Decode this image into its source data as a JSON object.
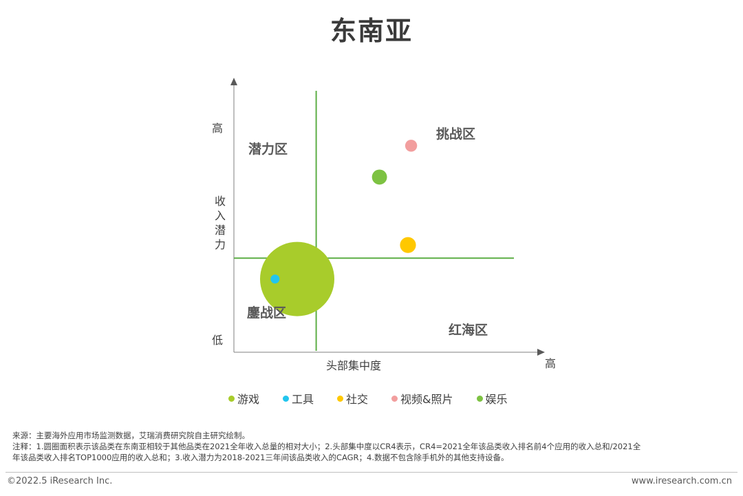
{
  "title": "东南亚",
  "chart_data": {
    "type": "scatter",
    "xlabel": "头部集中度",
    "ylabel": "收入潜力",
    "x_high_label": "高",
    "y_high_label": "高",
    "y_low_label": "低",
    "xlim": [
      0,
      100
    ],
    "ylim": [
      0,
      100
    ],
    "divider": {
      "x": 26,
      "y": 36
    },
    "quadrants": {
      "top_left": "潜力区",
      "top_right": "挑战区",
      "bottom_left": "鏖战区",
      "bottom_right": "红海区"
    },
    "series": [
      {
        "name": "游戏",
        "color": "#a8cc2b",
        "x": 20,
        "y": 28,
        "size": 100
      },
      {
        "name": "工具",
        "color": "#22c5ee",
        "x": 13,
        "y": 28,
        "size": 0.6
      },
      {
        "name": "社交",
        "color": "#ffc800",
        "x": 55,
        "y": 41,
        "size": 4.6
      },
      {
        "name": "视频&照片",
        "color": "#f29e9e",
        "x": 56,
        "y": 79,
        "size": 2.6
      },
      {
        "name": "娱乐",
        "color": "#7dc242",
        "x": 46,
        "y": 67,
        "size": 4.1
      }
    ],
    "grid": false,
    "legend_position": "bottom"
  },
  "notes": {
    "source": "来源：主要海外应用市场监测数据，艾瑞消费研究院自主研究绘制。",
    "note_line1": "注释：1.圆圈面积表示该品类在东南亚相较于其他品类在2021全年收入总量的相对大小；2.头部集中度以CR4表示，CR4=2021全年该品类收入排名前4个应用的收入总和/2021全",
    "note_line2": "年该品类收入排名TOP1000应用的收入总和；3.收入潜力为2018-2021三年间该品类收入的CAGR；4.数据不包含除手机外的其他支持设备。"
  },
  "footer": {
    "copyright": "©2022.5 iResearch Inc.",
    "website": "www.iresearch.com.cn"
  }
}
